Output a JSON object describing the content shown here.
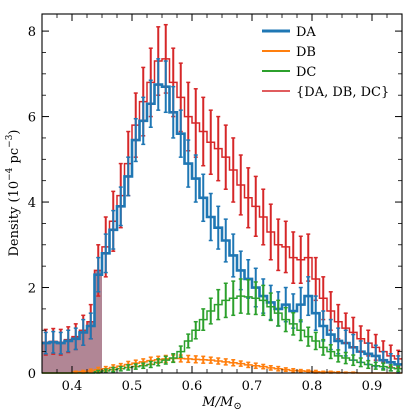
{
  "chart_data": {
    "type": "histogram",
    "title": "",
    "xlabel": "M/M",
    "xlabel_sub": "⊙",
    "ylabel_prefix": "Density (10",
    "ylabel_sup": "−4",
    "ylabel_unit": " pc",
    "ylabel_sup2": "−3",
    "ylabel_suffix": ")",
    "xlim": [
      0.35,
      0.95
    ],
    "ylim": [
      0,
      8.4
    ],
    "xticks": [
      0.4,
      0.5,
      0.6,
      0.7,
      0.8,
      0.9
    ],
    "xtick_labels": [
      "0.4",
      "0.5",
      "0.6",
      "0.7",
      "0.8",
      "0.9"
    ],
    "yticks": [
      0,
      2,
      4,
      6,
      8
    ],
    "ytick_labels": [
      "0",
      "2",
      "4",
      "6",
      "8"
    ],
    "bin_width": 0.0125,
    "bin_start": 0.35,
    "shaded_region": {
      "x0": 0.35,
      "x1": 0.45,
      "color": "#a9798a"
    },
    "legend": {
      "placement": "top-right"
    },
    "series": [
      {
        "name": "DA",
        "color": "#1f77b4",
        "style": "thick",
        "values": [
          0.7,
          0.72,
          0.7,
          0.75,
          0.8,
          0.95,
          1.1,
          2.3,
          2.8,
          3.35,
          3.9,
          4.6,
          5.45,
          5.9,
          6.3,
          6.75,
          6.7,
          6.1,
          5.6,
          4.9,
          4.55,
          4.1,
          3.65,
          3.4,
          3.1,
          2.75,
          2.4,
          2.2,
          2.0,
          1.8,
          1.65,
          1.5,
          1.6,
          1.45,
          1.6,
          1.8,
          1.4,
          1.1,
          0.9,
          0.75,
          0.7,
          0.6,
          0.5,
          0.45,
          0.4,
          0.3,
          0.25,
          0.2
        ],
        "errors": [
          0.25,
          0.25,
          0.25,
          0.25,
          0.25,
          0.3,
          0.3,
          0.4,
          0.45,
          0.45,
          0.45,
          0.45,
          0.5,
          0.55,
          0.55,
          0.6,
          0.6,
          0.6,
          0.55,
          0.55,
          0.55,
          0.55,
          0.55,
          0.5,
          0.5,
          0.5,
          0.45,
          0.45,
          0.45,
          0.4,
          0.4,
          0.4,
          0.4,
          0.4,
          0.4,
          0.45,
          0.4,
          0.35,
          0.35,
          0.3,
          0.3,
          0.3,
          0.25,
          0.25,
          0.25,
          0.2,
          0.2,
          0.2
        ]
      },
      {
        "name": "DB",
        "color": "#ff7f0e",
        "style": "thin",
        "values": [
          0,
          0,
          0,
          0,
          0.02,
          0.03,
          0.05,
          0.08,
          0.1,
          0.13,
          0.16,
          0.2,
          0.23,
          0.26,
          0.29,
          0.31,
          0.33,
          0.34,
          0.34,
          0.33,
          0.32,
          0.31,
          0.3,
          0.28,
          0.26,
          0.24,
          0.22,
          0.19,
          0.17,
          0.15,
          0.12,
          0.1,
          0.08,
          0.06,
          0.05,
          0.04,
          0.03,
          0.02,
          0.02,
          0.01,
          0.01,
          0.01,
          0,
          0,
          0,
          0,
          0,
          0
        ],
        "errors": [
          0,
          0,
          0,
          0,
          0.02,
          0.03,
          0.04,
          0.05,
          0.05,
          0.06,
          0.06,
          0.07,
          0.07,
          0.07,
          0.08,
          0.08,
          0.08,
          0.08,
          0.08,
          0.08,
          0.08,
          0.08,
          0.07,
          0.07,
          0.07,
          0.07,
          0.06,
          0.06,
          0.06,
          0.05,
          0.05,
          0.05,
          0.04,
          0.04,
          0.03,
          0.03,
          0.03,
          0.02,
          0.02,
          0.02,
          0.01,
          0.01,
          0,
          0,
          0,
          0,
          0,
          0
        ]
      },
      {
        "name": "DC",
        "color": "#2ca02c",
        "style": "thin",
        "values": [
          0,
          0,
          0,
          0,
          0,
          0,
          0,
          0.03,
          0.05,
          0.08,
          0.1,
          0.13,
          0.15,
          0.17,
          0.2,
          0.25,
          0.3,
          0.35,
          0.5,
          0.75,
          1.0,
          1.25,
          1.45,
          1.6,
          1.7,
          1.75,
          1.8,
          1.78,
          1.75,
          1.7,
          1.55,
          1.4,
          1.25,
          1.15,
          1.0,
          0.85,
          0.75,
          0.6,
          0.5,
          0.4,
          0.35,
          0.3,
          0.25,
          0.2,
          0.17,
          0.15,
          0.12,
          0.1
        ],
        "errors": [
          0,
          0,
          0,
          0,
          0,
          0,
          0,
          0.03,
          0.04,
          0.05,
          0.05,
          0.06,
          0.06,
          0.06,
          0.07,
          0.08,
          0.09,
          0.1,
          0.13,
          0.16,
          0.2,
          0.25,
          0.3,
          0.35,
          0.4,
          0.4,
          0.4,
          0.4,
          0.38,
          0.35,
          0.32,
          0.3,
          0.28,
          0.26,
          0.24,
          0.22,
          0.2,
          0.18,
          0.16,
          0.14,
          0.13,
          0.12,
          0.1,
          0.09,
          0.08,
          0.08,
          0.07,
          0.06
        ]
      },
      {
        "name": "{DA, DB, DC}",
        "color": "#d62728",
        "style": "thin",
        "values": [
          0.72,
          0.74,
          0.72,
          0.78,
          0.85,
          1.0,
          1.2,
          2.4,
          2.95,
          3.55,
          4.15,
          4.9,
          5.8,
          6.35,
          6.8,
          7.3,
          7.35,
          6.8,
          6.45,
          6.0,
          5.85,
          5.65,
          5.4,
          5.25,
          5.05,
          4.75,
          4.4,
          4.1,
          3.9,
          3.65,
          3.3,
          3.0,
          2.95,
          2.7,
          2.65,
          2.7,
          2.2,
          1.75,
          1.45,
          1.2,
          1.05,
          0.95,
          0.8,
          0.7,
          0.6,
          0.5,
          0.4,
          0.33
        ],
        "errors": [
          0.3,
          0.3,
          0.3,
          0.3,
          0.3,
          0.35,
          0.4,
          0.6,
          0.7,
          0.7,
          0.75,
          0.75,
          0.75,
          0.8,
          0.8,
          0.8,
          0.8,
          0.8,
          0.8,
          0.8,
          0.8,
          0.8,
          0.75,
          0.75,
          0.75,
          0.75,
          0.7,
          0.7,
          0.7,
          0.65,
          0.65,
          0.6,
          0.6,
          0.6,
          0.55,
          0.55,
          0.5,
          0.5,
          0.45,
          0.4,
          0.35,
          0.35,
          0.3,
          0.3,
          0.3,
          0.25,
          0.25,
          0.2
        ]
      }
    ]
  }
}
